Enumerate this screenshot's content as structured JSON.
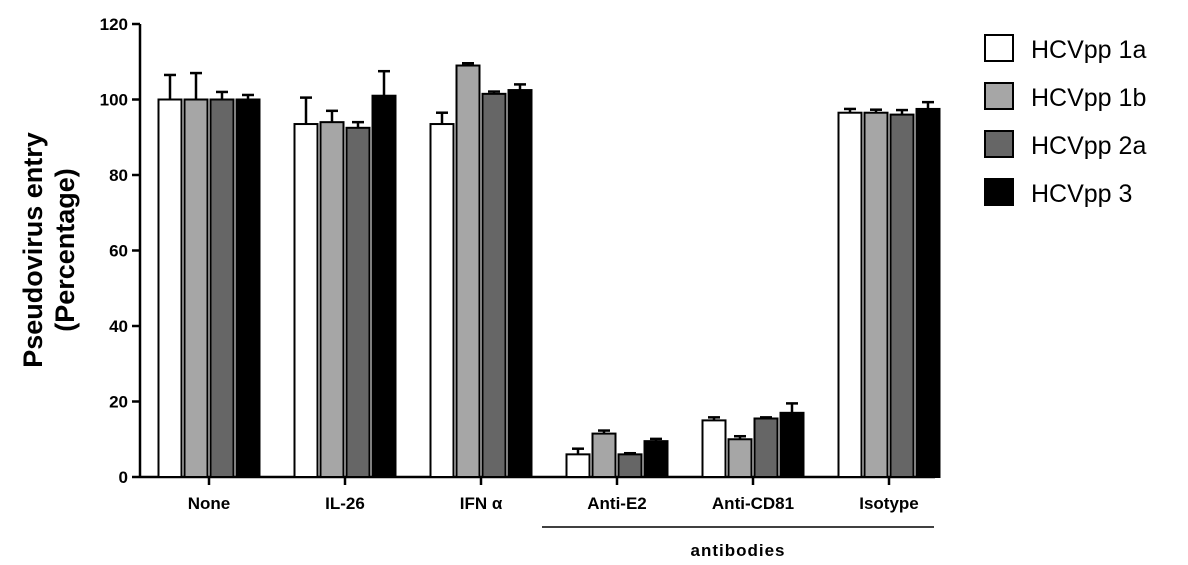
{
  "chart_data": {
    "type": "bar",
    "categories": [
      "None",
      "IL-26",
      "IFN α",
      "Anti-E2",
      "Anti-CD81",
      "Isotype"
    ],
    "ylabel_lines": [
      "Pseudovirus entry",
      "(Percentage)"
    ],
    "xlabel": "",
    "group_label": "antibodies",
    "group_members": [
      "Anti-E2",
      "Anti-CD81",
      "Isotype"
    ],
    "ylim": [
      0,
      120
    ],
    "yticks": [
      0,
      20,
      40,
      60,
      80,
      100,
      120
    ],
    "series": [
      {
        "name": "HCVpp 1a",
        "color": "#ffffff",
        "values": [
          100,
          93.5,
          93.5,
          6,
          15,
          96.5
        ],
        "errors": [
          6.5,
          7,
          3,
          1.5,
          0.8,
          1
        ]
      },
      {
        "name": "HCVpp 1b",
        "color": "#a6a6a6",
        "values": [
          100,
          94,
          109,
          11.5,
          10,
          96.5
        ],
        "errors": [
          7,
          3,
          0.6,
          0.8,
          0.8,
          0.8
        ]
      },
      {
        "name": "HCVpp 2a",
        "color": "#666666",
        "values": [
          100,
          92.5,
          101.5,
          6,
          15.5,
          96
        ],
        "errors": [
          2,
          1.5,
          0.6,
          0.3,
          0.3,
          1.2
        ]
      },
      {
        "name": "HCVpp 3",
        "color": "#000000",
        "values": [
          100,
          101,
          102.5,
          9.5,
          17,
          97.5
        ],
        "errors": [
          1.2,
          6.5,
          1.5,
          0.6,
          2.5,
          1.8
        ]
      }
    ],
    "legend_position": "top-right",
    "grid": false
  }
}
